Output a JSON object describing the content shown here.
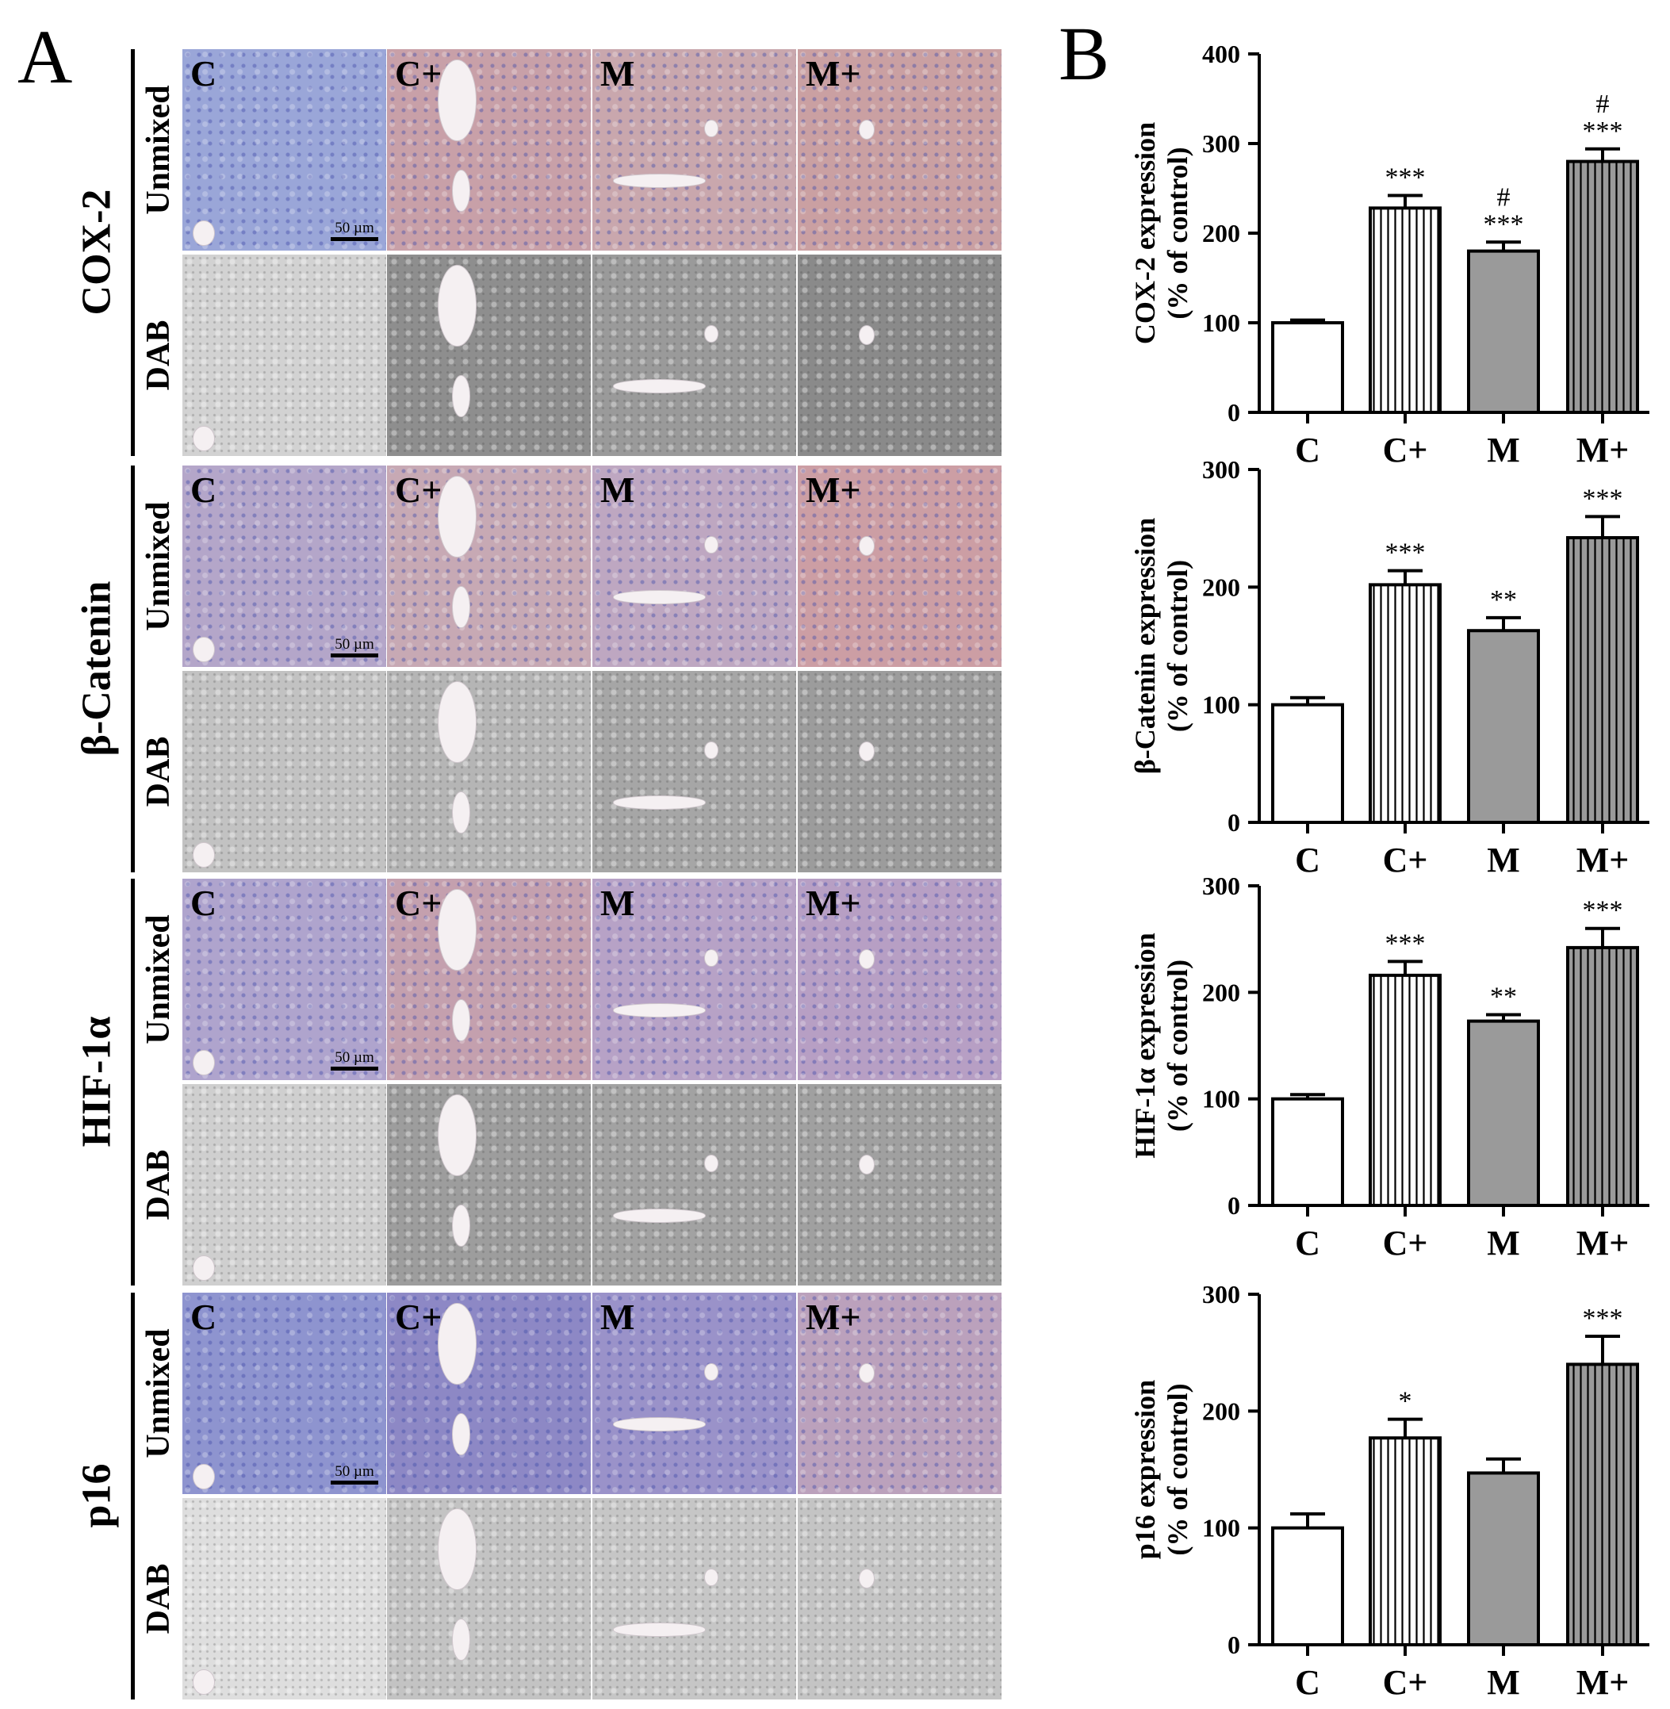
{
  "panel_a": {
    "label": "A",
    "groups": [
      {
        "name": "COX-2",
        "rows": [
          "Unmixed",
          "DAB"
        ],
        "columns": [
          "C",
          "C+",
          "M",
          "M+"
        ],
        "scale_bar": "50 µm",
        "unmixed_tones": [
          "#9aa6d8",
          "#c8a0a8",
          "#c9a7ad",
          "#caa0a2"
        ],
        "dab_tones": [
          "#d2d2d2",
          "#8e8e8e",
          "#9a9a9a",
          "#8a8a8a"
        ]
      },
      {
        "name": "β-Catenin",
        "rows": [
          "Unmixed",
          "DAB"
        ],
        "columns": [
          "C",
          "C+",
          "M",
          "M+"
        ],
        "scale_bar": "50 µm",
        "unmixed_tones": [
          "#b4a6c9",
          "#c7a9b4",
          "#bea7c1",
          "#cc9ea4"
        ],
        "dab_tones": [
          "#c2c2c2",
          "#b5b5b5",
          "#a6a6a6",
          "#9c9c9c"
        ]
      },
      {
        "name": "HIF-1α",
        "rows": [
          "Unmixed",
          "DAB"
        ],
        "columns": [
          "C",
          "C+",
          "M",
          "M+"
        ],
        "scale_bar": "50 µm",
        "unmixed_tones": [
          "#afa4cd",
          "#c4a0ae",
          "#b7a2c6",
          "#b79fc4"
        ],
        "dab_tones": [
          "#cfcfcf",
          "#9d9d9d",
          "#a2a2a2",
          "#a0a0a0"
        ]
      },
      {
        "name": "p16",
        "rows": [
          "Unmixed",
          "DAB"
        ],
        "columns": [
          "C",
          "C+",
          "M",
          "M+"
        ],
        "scale_bar": "50 µm",
        "unmixed_tones": [
          "#8e94cf",
          "#8d88c5",
          "#9a92c9",
          "#bba1bc"
        ],
        "dab_tones": [
          "#dedede",
          "#c3c3c3",
          "#c6c6c6",
          "#c4c4c4"
        ]
      }
    ]
  },
  "panel_b": {
    "label": "B"
  },
  "chart_data": [
    {
      "type": "bar",
      "categories": [
        "C",
        "C+",
        "M",
        "M+"
      ],
      "values": [
        100,
        228,
        180,
        280
      ],
      "errors": [
        3,
        14,
        10,
        14
      ],
      "annotations": [
        [
          "",
          "***",
          "***",
          "***"
        ],
        [
          "",
          "",
          "#",
          "#"
        ]
      ],
      "ylabel": [
        "COX-2 expression",
        "(% of control)"
      ],
      "ylim": [
        0,
        400
      ],
      "yticks": [
        0,
        100,
        200,
        300,
        400
      ],
      "patterns": [
        "open",
        "vertical-lines",
        "gray",
        "gray-vertical-lines"
      ]
    },
    {
      "type": "bar",
      "categories": [
        "C",
        "C+",
        "M",
        "M+"
      ],
      "values": [
        100,
        202,
        163,
        242
      ],
      "errors": [
        6,
        12,
        11,
        18
      ],
      "annotations": [
        [
          "",
          "***",
          "**",
          "***"
        ]
      ],
      "ylabel": [
        "β-Catenin expression",
        "(% of control)"
      ],
      "ylim": [
        0,
        300
      ],
      "yticks": [
        0,
        100,
        200,
        300
      ],
      "patterns": [
        "open",
        "vertical-lines",
        "gray",
        "gray-vertical-lines"
      ]
    },
    {
      "type": "bar",
      "categories": [
        "C",
        "C+",
        "M",
        "M+"
      ],
      "values": [
        100,
        216,
        173,
        242
      ],
      "errors": [
        4,
        13,
        6,
        18
      ],
      "annotations": [
        [
          "",
          "***",
          "**",
          "***"
        ]
      ],
      "ylabel": [
        "HIF-1α expression",
        "(% of control)"
      ],
      "ylim": [
        0,
        300
      ],
      "yticks": [
        0,
        100,
        200,
        300
      ],
      "patterns": [
        "open",
        "vertical-lines",
        "gray",
        "gray-vertical-lines"
      ]
    },
    {
      "type": "bar",
      "categories": [
        "C",
        "C+",
        "M",
        "M+"
      ],
      "values": [
        100,
        177,
        147,
        240
      ],
      "errors": [
        12,
        16,
        12,
        24
      ],
      "annotations": [
        [
          "",
          "*",
          "",
          "***"
        ]
      ],
      "ylabel": [
        "p16 expression",
        "(% of control)"
      ],
      "ylim": [
        0,
        300
      ],
      "yticks": [
        0,
        100,
        200,
        300
      ],
      "patterns": [
        "open",
        "vertical-lines",
        "gray",
        "gray-vertical-lines"
      ]
    }
  ]
}
